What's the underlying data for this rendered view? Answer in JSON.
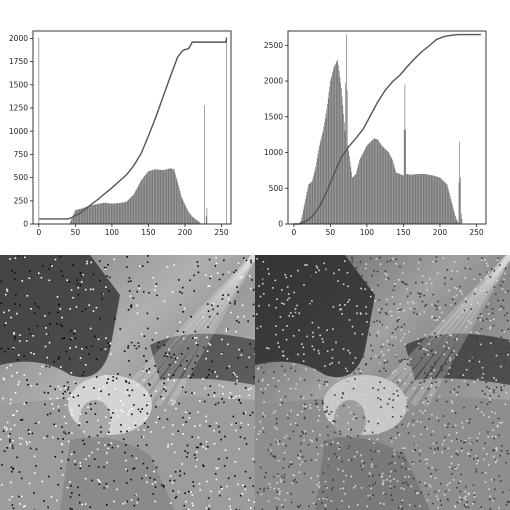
{
  "chart_data": [
    {
      "type": "bar",
      "title": "",
      "xlabel": "",
      "ylabel": "",
      "xlim": [
        -8,
        263
      ],
      "ylim": [
        0,
        2080
      ],
      "xticks": [
        0,
        50,
        100,
        150,
        200,
        250
      ],
      "yticks": [
        0,
        250,
        500,
        750,
        1000,
        1250,
        1500,
        1750,
        2000
      ],
      "xtick_labels": [
        "0",
        "50",
        "100",
        "150",
        "200",
        "250"
      ],
      "ytick_labels": [
        "0",
        "250",
        "500",
        "750",
        "1000",
        "1250",
        "1500",
        "1750",
        "2000"
      ],
      "series": [
        {
          "kind": "histogram",
          "profile": [
            [
              0,
              2010
            ],
            [
              1,
              0
            ],
            [
              42,
              0
            ],
            [
              45,
              60
            ],
            [
              50,
              150
            ],
            [
              55,
              160
            ],
            [
              60,
              170
            ],
            [
              70,
              200
            ],
            [
              80,
              215
            ],
            [
              90,
              230
            ],
            [
              100,
              220
            ],
            [
              110,
              225
            ],
            [
              120,
              240
            ],
            [
              130,
              320
            ],
            [
              140,
              470
            ],
            [
              150,
              570
            ],
            [
              160,
              590
            ],
            [
              170,
              580
            ],
            [
              180,
              600
            ],
            [
              185,
              590
            ],
            [
              190,
              450
            ],
            [
              195,
              300
            ],
            [
              200,
              210
            ],
            [
              205,
              130
            ],
            [
              210,
              80
            ],
            [
              215,
              50
            ],
            [
              220,
              20
            ],
            [
              222,
              0
            ],
            [
              226,
              0
            ],
            [
              227,
              1280
            ],
            [
              228,
              0
            ],
            [
              230,
              170
            ],
            [
              231,
              0
            ],
            [
              256,
              0
            ],
            [
              257,
              2010
            ]
          ]
        },
        {
          "kind": "cumulative",
          "points": [
            [
              0,
              55
            ],
            [
              40,
              55
            ],
            [
              45,
              70
            ],
            [
              55,
              110
            ],
            [
              65,
              170
            ],
            [
              80,
              260
            ],
            [
              100,
              390
            ],
            [
              120,
              530
            ],
            [
              130,
              630
            ],
            [
              140,
              760
            ],
            [
              150,
              950
            ],
            [
              160,
              1150
            ],
            [
              170,
              1370
            ],
            [
              180,
              1590
            ],
            [
              190,
              1800
            ],
            [
              197,
              1870
            ],
            [
              200,
              1880
            ],
            [
              205,
              1890
            ],
            [
              210,
              1960
            ],
            [
              226,
              1960
            ],
            [
              227,
              1960
            ],
            [
              256,
              1960
            ],
            [
              257,
              2010
            ]
          ]
        }
      ]
    },
    {
      "type": "bar",
      "title": "",
      "xlabel": "",
      "ylabel": "",
      "xlim": [
        -8,
        263
      ],
      "ylim": [
        0,
        2700
      ],
      "xticks": [
        0,
        50,
        100,
        150,
        200,
        250
      ],
      "yticks": [
        0,
        500,
        1000,
        1500,
        2000,
        2500
      ],
      "xtick_labels": [
        "0",
        "50",
        "100",
        "150",
        "200",
        "250"
      ],
      "ytick_labels": [
        "0",
        "500",
        "1000",
        "1500",
        "2000",
        "2500"
      ],
      "series": [
        {
          "kind": "histogram",
          "profile": [
            [
              0,
              0
            ],
            [
              7,
              0
            ],
            [
              10,
              50
            ],
            [
              15,
              300
            ],
            [
              20,
              550
            ],
            [
              25,
              600
            ],
            [
              30,
              800
            ],
            [
              35,
              1100
            ],
            [
              40,
              1300
            ],
            [
              45,
              1600
            ],
            [
              50,
              2000
            ],
            [
              55,
              2200
            ],
            [
              60,
              2300
            ],
            [
              65,
              1900
            ],
            [
              70,
              1300
            ],
            [
              72,
              2650
            ],
            [
              74,
              1100
            ],
            [
              80,
              650
            ],
            [
              85,
              700
            ],
            [
              90,
              900
            ],
            [
              100,
              1100
            ],
            [
              105,
              1150
            ],
            [
              110,
              1200
            ],
            [
              115,
              1180
            ],
            [
              120,
              1100
            ],
            [
              125,
              1050
            ],
            [
              130,
              1000
            ],
            [
              135,
              900
            ],
            [
              140,
              720
            ],
            [
              150,
              680
            ],
            [
              152,
              1950
            ],
            [
              154,
              700
            ],
            [
              160,
              690
            ],
            [
              170,
              700
            ],
            [
              180,
              700
            ],
            [
              190,
              680
            ],
            [
              200,
              650
            ],
            [
              210,
              550
            ],
            [
              215,
              350
            ],
            [
              220,
              150
            ],
            [
              222,
              80
            ],
            [
              225,
              20
            ],
            [
              227,
              1150
            ],
            [
              229,
              150
            ],
            [
              231,
              0
            ],
            [
              256,
              0
            ]
          ]
        },
        {
          "kind": "cumulative",
          "points": [
            [
              0,
              0
            ],
            [
              7,
              0
            ],
            [
              15,
              30
            ],
            [
              25,
              100
            ],
            [
              35,
              240
            ],
            [
              45,
              450
            ],
            [
              55,
              700
            ],
            [
              65,
              930
            ],
            [
              75,
              1080
            ],
            [
              85,
              1200
            ],
            [
              95,
              1330
            ],
            [
              105,
              1520
            ],
            [
              115,
              1710
            ],
            [
              125,
              1870
            ],
            [
              135,
              1990
            ],
            [
              145,
              2080
            ],
            [
              155,
              2200
            ],
            [
              165,
              2310
            ],
            [
              175,
              2410
            ],
            [
              185,
              2490
            ],
            [
              195,
              2580
            ],
            [
              205,
              2620
            ],
            [
              215,
              2640
            ],
            [
              225,
              2650
            ],
            [
              240,
              2650
            ],
            [
              256,
              2650
            ]
          ]
        }
      ]
    }
  ],
  "images": [
    {
      "name": "noisy-grayscale-photo",
      "style": "salt-and-pepper"
    },
    {
      "name": "equalized-grayscale-photo",
      "style": "contrast-equalized"
    }
  ]
}
